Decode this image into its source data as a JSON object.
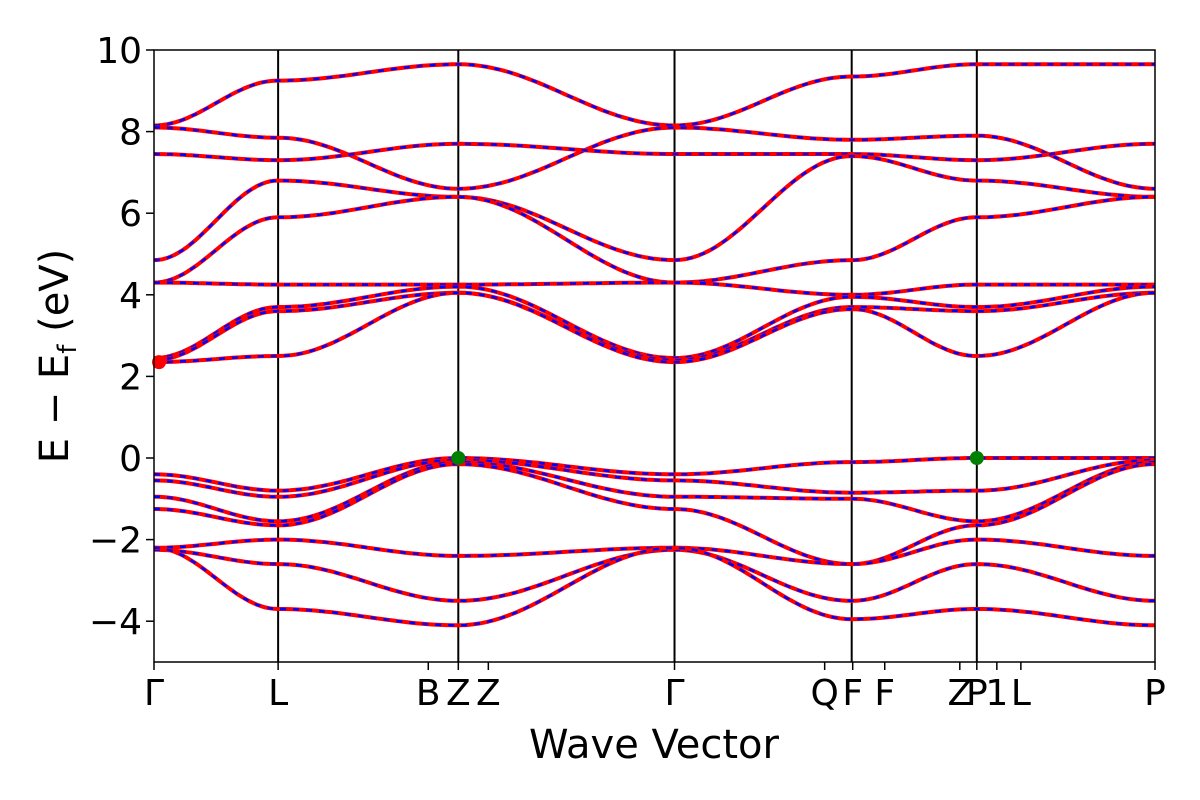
{
  "chart_data": {
    "type": "line",
    "xlabel": "Wave Vector",
    "ylabel": "E − E",
    "ylabel_sub": "f",
    "ylabel_unit": " (eV)",
    "ylim": [
      -5,
      10
    ],
    "yticks": [
      {
        "value": -4,
        "label": "−4"
      },
      {
        "value": -2,
        "label": "−2"
      },
      {
        "value": 0,
        "label": "0"
      },
      {
        "value": 2,
        "label": "2"
      },
      {
        "value": 4,
        "label": "4"
      },
      {
        "value": 6,
        "label": "6"
      },
      {
        "value": 8,
        "label": "8"
      },
      {
        "value": 10,
        "label": "10"
      }
    ],
    "xlim": [
      0,
      1
    ],
    "kpoints": [
      {
        "pos": 0.0,
        "label": "Γ"
      },
      {
        "pos": 0.124,
        "label": "L"
      },
      {
        "pos": 0.274,
        "label": "B"
      },
      {
        "pos": 0.304,
        "label": "Z"
      },
      {
        "pos": 0.334,
        "label": "Z"
      },
      {
        "pos": 0.52,
        "label": "Γ"
      },
      {
        "pos": 0.67,
        "label": "Q"
      },
      {
        "pos": 0.698,
        "label": "F"
      },
      {
        "pos": 0.73,
        "label": "F"
      },
      {
        "pos": 0.805,
        "label": "Z"
      },
      {
        "pos": 0.822,
        "label": "P"
      },
      {
        "pos": 0.842,
        "label": "1"
      },
      {
        "pos": 0.866,
        "label": "L"
      },
      {
        "pos": 1.0,
        "label": "P"
      }
    ],
    "vlines": [
      0.124,
      0.304,
      0.52,
      0.697,
      0.822
    ],
    "series_colors": {
      "solid": "#ff0000",
      "dashed": "#0000ff"
    },
    "vbm_color": "#008000",
    "cbm_color": "#ff0000",
    "bands": [
      [
        [
          0,
          8.15
        ],
        [
          0.124,
          9.25
        ],
        [
          0.304,
          9.65
        ],
        [
          0.52,
          8.15
        ],
        [
          0.697,
          9.35
        ],
        [
          0.822,
          9.65
        ],
        [
          1,
          9.65
        ]
      ],
      [
        [
          0,
          8.1
        ],
        [
          0.124,
          7.85
        ],
        [
          0.304,
          6.6
        ],
        [
          0.52,
          8.1
        ],
        [
          0.697,
          7.8
        ],
        [
          0.822,
          7.9
        ],
        [
          1,
          6.6
        ]
      ],
      [
        [
          0,
          7.45
        ],
        [
          0.124,
          7.3
        ],
        [
          0.304,
          7.7
        ],
        [
          0.52,
          7.45
        ],
        [
          0.697,
          7.45
        ],
        [
          0.822,
          7.3
        ],
        [
          1,
          7.7
        ]
      ],
      [
        [
          0,
          4.85
        ],
        [
          0.124,
          6.8
        ],
        [
          0.304,
          6.4
        ],
        [
          0.52,
          4.85
        ],
        [
          0.697,
          7.4
        ],
        [
          0.822,
          6.8
        ],
        [
          1,
          6.4
        ]
      ],
      [
        [
          0,
          4.3
        ],
        [
          0.124,
          5.9
        ],
        [
          0.304,
          6.4
        ],
        [
          0.52,
          4.3
        ],
        [
          0.697,
          4.85
        ],
        [
          0.822,
          5.9
        ],
        [
          1,
          6.4
        ]
      ],
      [
        [
          0,
          4.3
        ],
        [
          0.124,
          4.25
        ],
        [
          0.304,
          4.25
        ],
        [
          0.52,
          4.3
        ],
        [
          0.697,
          4.0
        ],
        [
          0.822,
          4.25
        ],
        [
          1,
          4.25
        ]
      ],
      [
        [
          0,
          2.45
        ],
        [
          0.124,
          3.7
        ],
        [
          0.304,
          4.2
        ],
        [
          0.52,
          2.45
        ],
        [
          0.697,
          3.95
        ],
        [
          0.822,
          3.7
        ],
        [
          1,
          4.2
        ]
      ],
      [
        [
          0,
          2.4
        ],
        [
          0.124,
          3.6
        ],
        [
          0.304,
          4.05
        ],
        [
          0.52,
          2.4
        ],
        [
          0.697,
          3.7
        ],
        [
          0.822,
          3.6
        ],
        [
          1,
          4.05
        ]
      ],
      [
        [
          0,
          2.35
        ],
        [
          0.124,
          2.5
        ],
        [
          0.304,
          4.05
        ],
        [
          0.52,
          2.35
        ],
        [
          0.697,
          3.65
        ],
        [
          0.822,
          2.5
        ],
        [
          1,
          4.05
        ]
      ],
      [
        [
          0,
          -0.4
        ],
        [
          0.124,
          -0.8
        ],
        [
          0.304,
          0.0
        ],
        [
          0.52,
          -0.4
        ],
        [
          0.697,
          -0.1
        ],
        [
          0.822,
          0.0
        ],
        [
          1,
          0.0
        ]
      ],
      [
        [
          0,
          -0.55
        ],
        [
          0.124,
          -0.95
        ],
        [
          0.304,
          -0.05
        ],
        [
          0.52,
          -0.55
        ],
        [
          0.697,
          -0.85
        ],
        [
          0.822,
          -0.8
        ],
        [
          1,
          -0.05
        ]
      ],
      [
        [
          0,
          -0.95
        ],
        [
          0.124,
          -1.55
        ],
        [
          0.304,
          -0.1
        ],
        [
          0.52,
          -0.95
        ],
        [
          0.697,
          -1.0
        ],
        [
          0.822,
          -1.55
        ],
        [
          1,
          -0.1
        ]
      ],
      [
        [
          0,
          -1.25
        ],
        [
          0.124,
          -1.65
        ],
        [
          0.304,
          -0.15
        ],
        [
          0.52,
          -1.25
        ],
        [
          0.697,
          -2.6
        ],
        [
          0.822,
          -1.65
        ],
        [
          1,
          -0.15
        ]
      ],
      [
        [
          0,
          -2.2
        ],
        [
          0.124,
          -2.0
        ],
        [
          0.304,
          -2.4
        ],
        [
          0.52,
          -2.2
        ],
        [
          0.697,
          -2.6
        ],
        [
          0.822,
          -2.0
        ],
        [
          1,
          -2.4
        ]
      ],
      [
        [
          0,
          -2.25
        ],
        [
          0.124,
          -2.6
        ],
        [
          0.304,
          -3.5
        ],
        [
          0.52,
          -2.25
        ],
        [
          0.697,
          -3.5
        ],
        [
          0.822,
          -2.6
        ],
        [
          1,
          -3.5
        ]
      ],
      [
        [
          0,
          -2.2
        ],
        [
          0.124,
          -3.7
        ],
        [
          0.304,
          -4.1
        ],
        [
          0.52,
          -2.2
        ],
        [
          0.697,
          -3.95
        ],
        [
          0.822,
          -3.7
        ],
        [
          1,
          -4.1
        ]
      ]
    ],
    "vbm_points": [
      [
        0.304,
        0.0
      ],
      [
        0.822,
        0.0
      ]
    ],
    "cbm_points": [
      [
        0.005,
        2.35
      ]
    ]
  }
}
